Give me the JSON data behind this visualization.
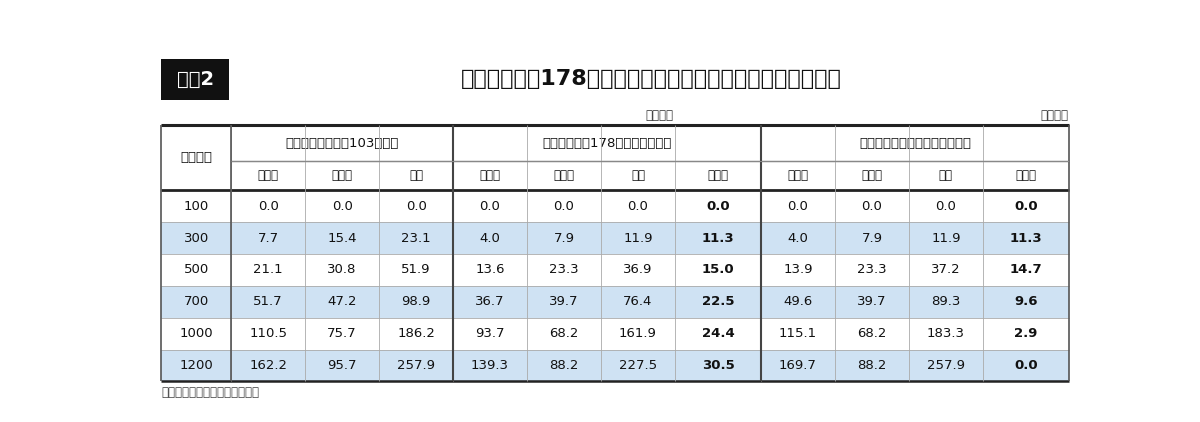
{
  "title": "基礎控除等を178万円へ引き上げた場合の所得税・住民税額",
  "title_label": "図表2",
  "unit_label": "（万円）",
  "source": "（出所）伊藤忠総研による試算",
  "group_headers": [
    "現状（基礎控除等103万円）",
    "基礎控除等を178万円へ引き上げ",
    "累進税率カーブ修正後の減税幅"
  ],
  "sub_headers": [
    "所得税",
    "住民税",
    "合計",
    "所得税",
    "住民税",
    "合計",
    "減税幅",
    "所得税",
    "住民税",
    "合計",
    "減税幅"
  ],
  "row_header": "給与所得",
  "rows": [
    {
      "給与所得": "100",
      "g1": [
        0.0,
        0.0,
        0.0
      ],
      "g2": [
        0.0,
        0.0,
        0.0,
        0.0
      ],
      "g3": [
        0.0,
        0.0,
        0.0,
        0.0
      ]
    },
    {
      "給与所得": "300",
      "g1": [
        7.7,
        15.4,
        23.1
      ],
      "g2": [
        4.0,
        7.9,
        11.9,
        11.3
      ],
      "g3": [
        4.0,
        7.9,
        11.9,
        11.3
      ]
    },
    {
      "給与所得": "500",
      "g1": [
        21.1,
        30.8,
        51.9
      ],
      "g2": [
        13.6,
        23.3,
        36.9,
        15.0
      ],
      "g3": [
        13.9,
        23.3,
        37.2,
        14.7
      ]
    },
    {
      "給与所得": "700",
      "g1": [
        51.7,
        47.2,
        98.9
      ],
      "g2": [
        36.7,
        39.7,
        76.4,
        22.5
      ],
      "g3": [
        49.6,
        39.7,
        89.3,
        9.6
      ]
    },
    {
      "給与所得": "1000",
      "g1": [
        110.5,
        75.7,
        186.2
      ],
      "g2": [
        93.7,
        68.2,
        161.9,
        24.4
      ],
      "g3": [
        115.1,
        68.2,
        183.3,
        2.9
      ]
    },
    {
      "給与所得": "1200",
      "g1": [
        162.2,
        95.7,
        257.9
      ],
      "g2": [
        139.3,
        88.2,
        227.5,
        30.5
      ],
      "g3": [
        169.7,
        88.2,
        257.9,
        0.0
      ]
    }
  ],
  "bg_color_odd": "#cfe2f3",
  "bg_color_even": "#ffffff",
  "title_box_bg": "#111111",
  "title_box_text": "#ffffff",
  "text_color": "#111111",
  "border_dark": "#333333",
  "border_light": "#999999"
}
